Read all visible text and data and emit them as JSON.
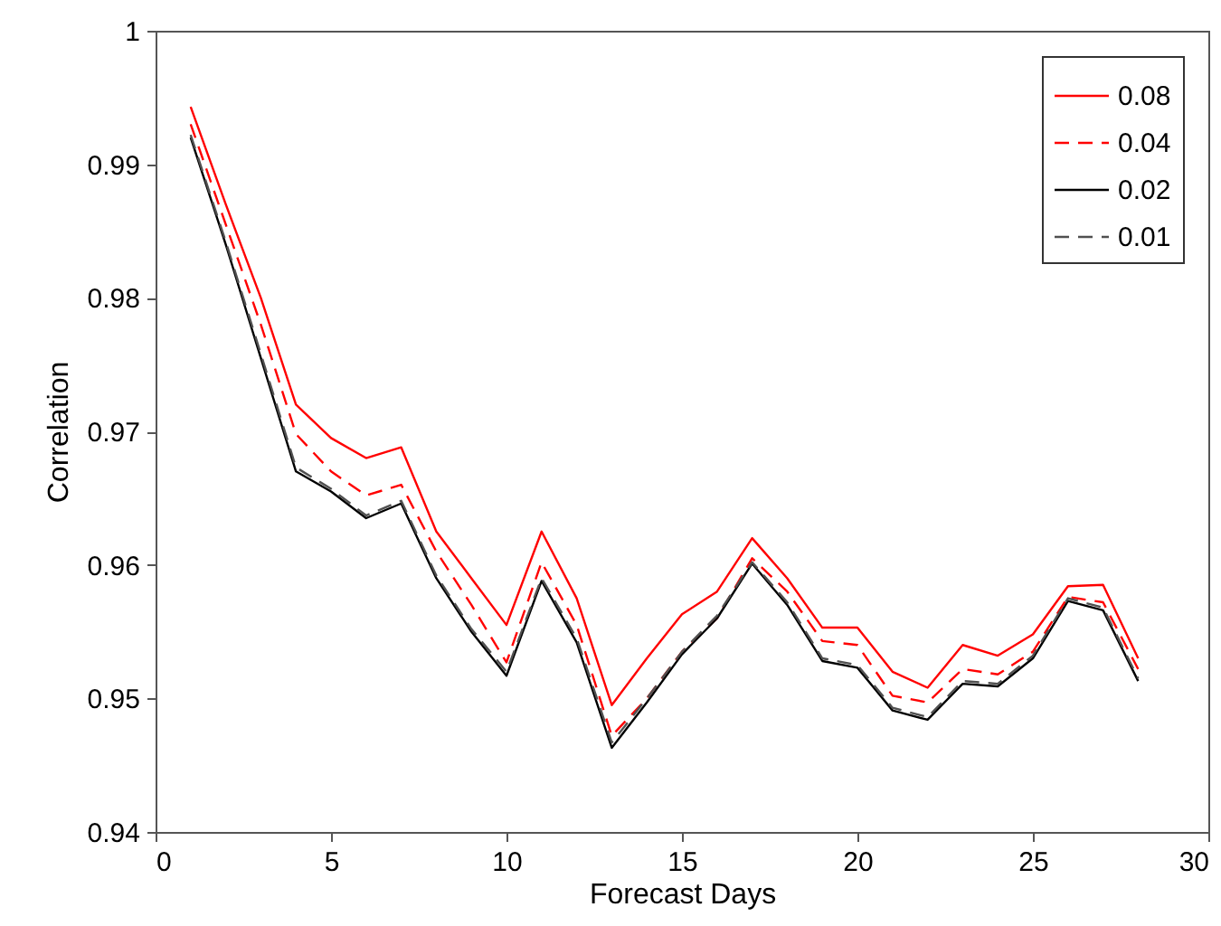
{
  "chart_data": {
    "type": "line",
    "xlabel": "Forecast Days",
    "ylabel": "Correlation",
    "x": [
      1,
      2,
      3,
      4,
      5,
      6,
      7,
      8,
      9,
      10,
      11,
      12,
      13,
      14,
      15,
      16,
      17,
      18,
      19,
      20,
      21,
      22,
      23,
      24,
      25,
      26,
      27,
      28
    ],
    "xlim": [
      0,
      30
    ],
    "xticks": [
      0,
      5,
      10,
      15,
      20,
      25,
      30
    ],
    "ylim": [
      0.94,
      1
    ],
    "yticks": [
      0.94,
      0.95,
      0.96,
      0.97,
      0.98,
      0.99,
      1
    ],
    "grid": false,
    "legend": "top right",
    "marker": "none",
    "series": [
      {
        "name": "0.08",
        "color": "#ff0000",
        "line_style": "solid",
        "values": [
          0.9943,
          0.987,
          0.98,
          0.972,
          0.9695,
          0.968,
          0.9688,
          0.9625,
          0.959,
          0.9555,
          0.9625,
          0.9575,
          0.9495,
          0.953,
          0.9563,
          0.958,
          0.962,
          0.959,
          0.9553,
          0.9553,
          0.952,
          0.9508,
          0.954,
          0.9532,
          0.9548,
          0.9584,
          0.9585,
          0.953
        ]
      },
      {
        "name": "0.04",
        "color": "#ff0000",
        "line_style": "dashed",
        "values": [
          0.993,
          0.9855,
          0.978,
          0.9698,
          0.967,
          0.9652,
          0.966,
          0.961,
          0.957,
          0.9527,
          0.9602,
          0.9555,
          0.9472,
          0.95,
          0.9535,
          0.956,
          0.9605,
          0.958,
          0.9543,
          0.954,
          0.9502,
          0.9497,
          0.9522,
          0.9518,
          0.9535,
          0.9576,
          0.9572,
          0.9522
        ]
      },
      {
        "name": "0.02",
        "color": "#000000",
        "line_style": "solid",
        "values": [
          0.992,
          0.984,
          0.9755,
          0.967,
          0.9655,
          0.9635,
          0.9646,
          0.959,
          0.955,
          0.9517,
          0.9588,
          0.9542,
          0.9463,
          0.9497,
          0.9533,
          0.956,
          0.9601,
          0.957,
          0.9528,
          0.9523,
          0.9491,
          0.9484,
          0.9511,
          0.9509,
          0.953,
          0.9573,
          0.9566,
          0.9513
        ]
      },
      {
        "name": "0.01",
        "color": "#505050",
        "line_style": "dashed",
        "values": [
          0.9922,
          0.9842,
          0.9758,
          0.9673,
          0.9657,
          0.9637,
          0.9648,
          0.9592,
          0.9552,
          0.952,
          0.959,
          0.9545,
          0.9467,
          0.95,
          0.9535,
          0.9562,
          0.9602,
          0.9572,
          0.953,
          0.9525,
          0.9493,
          0.9486,
          0.9513,
          0.9511,
          0.9532,
          0.9575,
          0.9568,
          0.9515
        ]
      }
    ]
  }
}
